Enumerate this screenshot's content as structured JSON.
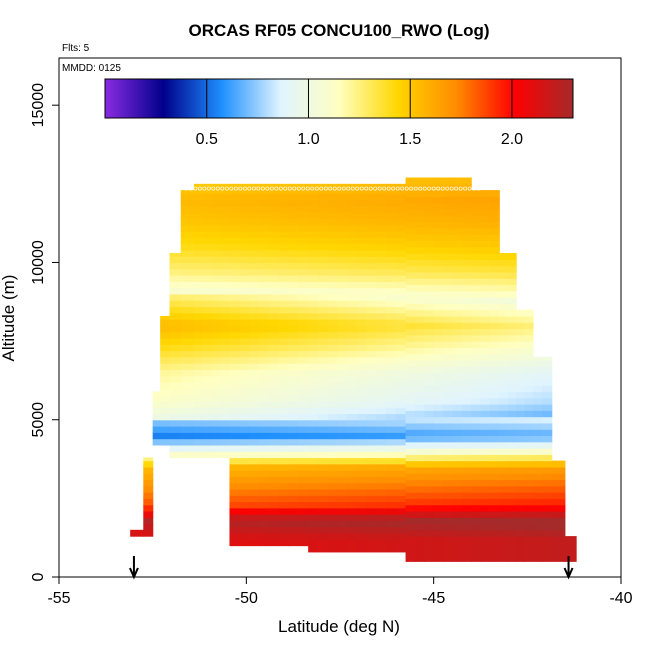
{
  "chart_data": {
    "type": "heatmap",
    "title": "ORCAS RF05 CONCU100_RWO (Log)",
    "flights_label": "Flts: 5",
    "date_label": "MMDD: 0125",
    "xlabel": "Latitude (deg N)",
    "ylabel": "Altitude (m)",
    "xlim": [
      -55,
      -40
    ],
    "ylim": [
      0,
      16500
    ],
    "x_ticks": [
      -55,
      -50,
      -45,
      -40
    ],
    "x_tick_labels": [
      "-55",
      "-50",
      "-45",
      "-40"
    ],
    "y_ticks": [
      0,
      5000,
      10000,
      15000
    ],
    "y_tick_labels": [
      "0",
      "5000",
      "10000",
      "15000"
    ],
    "colorbar": {
      "range": [
        0.0,
        2.3
      ],
      "ticks": [
        0.5,
        1.0,
        1.5,
        2.0
      ],
      "tick_labels": [
        "0.5",
        "1.0",
        "1.5",
        "2.0"
      ],
      "colors": [
        "#8a2be2",
        "#00008b",
        "#1e90ff",
        "#e0f4ff",
        "#ffffc0",
        "#ffd700",
        "#ff8c00",
        "#ff0000",
        "#a52a2a"
      ]
    },
    "data_columns": [
      {
        "lat": -52.9,
        "alt_min": 1300,
        "alt_max": 1500
      },
      {
        "lat": -52.6,
        "alt_min": 1300,
        "alt_max": 3800
      },
      {
        "lat": -52.4,
        "alt_min": 4200,
        "alt_max": 5900
      },
      {
        "lat": -52.2,
        "alt_min": 4200,
        "alt_max": 8300
      },
      {
        "lat": -51.9,
        "alt_min": 3800,
        "alt_max": 10300
      },
      {
        "lat": -51.6,
        "alt_min": 3800,
        "alt_max": 12300
      },
      {
        "lat": -51.2,
        "alt_min": 3800,
        "alt_max": 12500
      },
      {
        "lat": -49.7,
        "alt_min": 1000,
        "alt_max": 12500
      },
      {
        "lat": -47.0,
        "alt_min": 800,
        "alt_max": 12500
      },
      {
        "lat": -44.5,
        "alt_min": 500,
        "alt_max": 12700
      },
      {
        "lat": -43.5,
        "alt_min": 500,
        "alt_max": 12300
      },
      {
        "lat": -43.0,
        "alt_min": 500,
        "alt_max": 10300
      },
      {
        "lat": -42.6,
        "alt_min": 500,
        "alt_max": 8500
      },
      {
        "lat": -42.1,
        "alt_min": 500,
        "alt_max": 7000
      },
      {
        "lat": -41.6,
        "alt_min": 500,
        "alt_max": 3700
      },
      {
        "lat": -41.4,
        "alt_min": 500,
        "alt_max": 1300
      }
    ],
    "profile_by_altitude": [
      {
        "alt": 500,
        "value": 2.15
      },
      {
        "alt": 1200,
        "value": 2.15
      },
      {
        "alt": 1800,
        "value": 2.3
      },
      {
        "alt": 2300,
        "value": 1.9
      },
      {
        "alt": 2900,
        "value": 1.75
      },
      {
        "alt": 3500,
        "value": 1.6
      },
      {
        "alt": 3800,
        "value": 1.25
      },
      {
        "alt": 4100,
        "value": 0.95
      },
      {
        "alt": 4500,
        "value": 0.6
      },
      {
        "alt": 5000,
        "value": 0.8
      },
      {
        "alt": 5600,
        "value": 0.95
      },
      {
        "alt": 6500,
        "value": 1.05
      },
      {
        "alt": 7300,
        "value": 1.25
      },
      {
        "alt": 8000,
        "value": 1.4
      },
      {
        "alt": 9000,
        "value": 1.1
      },
      {
        "alt": 9700,
        "value": 1.3
      },
      {
        "alt": 10500,
        "value": 1.45
      },
      {
        "alt": 11300,
        "value": 1.55
      },
      {
        "alt": 12000,
        "value": 1.6
      },
      {
        "alt": 12700,
        "value": 1.5
      }
    ],
    "arrow_latitudes": [
      -53.0,
      -41.4
    ]
  }
}
